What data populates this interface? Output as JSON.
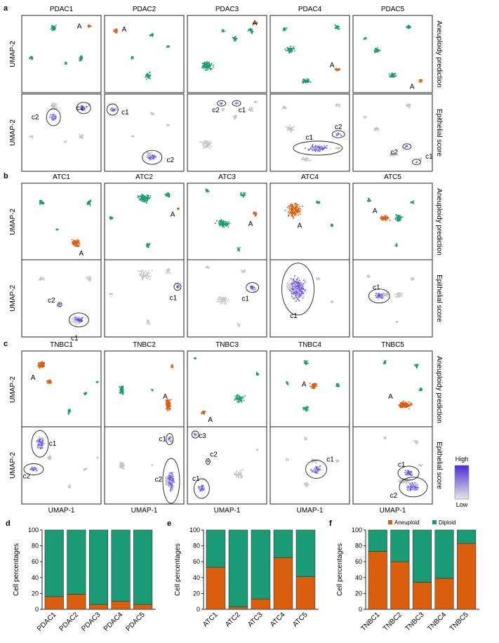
{
  "colors": {
    "aneuploid": "#d95f0e",
    "diploid": "#1a9b75",
    "score_high": "#4b2bd6",
    "score_low": "#c8c8c8",
    "grey_cells": "#c4c4c4"
  },
  "axis_labels": {
    "umap1": "UMAP-1",
    "umap2": "UMAP-2",
    "aneuploidy": "Aneuploidy prediction",
    "epithelial": "Epithelial score"
  },
  "legend": {
    "high": "High",
    "low": "Low",
    "aneuploid": "Aneuploid",
    "diploid": "Diploid"
  },
  "panels": [
    {
      "letter": "a",
      "samples": [
        "PDAC1",
        "PDAC2",
        "PDAC3",
        "PDAC4",
        "PDAC5"
      ],
      "top_labels": [
        "A",
        "A",
        "A",
        "A",
        "A"
      ],
      "bottom_labels": [
        [
          "c2",
          "c1"
        ],
        [
          "c1",
          "c2"
        ],
        [
          "c2",
          "c1"
        ],
        [
          "c1",
          "c2"
        ],
        [
          "c2",
          "c1"
        ]
      ]
    },
    {
      "letter": "b",
      "samples": [
        "ATC1",
        "ATC2",
        "ATC3",
        "ATC4",
        "ATC5"
      ],
      "top_labels": [
        "A",
        "A",
        "A",
        "A",
        "A"
      ],
      "bottom_labels": [
        [
          "c2",
          "c1"
        ],
        [
          "c1"
        ],
        [
          "c1"
        ],
        [
          "c1"
        ],
        [
          "c1"
        ]
      ]
    },
    {
      "letter": "c",
      "samples": [
        "TNBC1",
        "TNBC2",
        "TNBC3",
        "TNBC4",
        "TNBC5"
      ],
      "top_labels": [
        "A",
        "A",
        "A",
        "A",
        "A"
      ],
      "bottom_labels": [
        [
          "c1",
          "c2"
        ],
        [
          "c1",
          "c2"
        ],
        [
          "c3",
          "c2",
          "c1"
        ],
        [
          "c1"
        ],
        [
          "c1",
          "c2"
        ]
      ]
    }
  ],
  "chart_data": [
    {
      "type": "bar",
      "letter": "d",
      "stacked": true,
      "categories": [
        "PDAC1",
        "PDAC2",
        "PDAC3",
        "PDAC4",
        "PDAC5"
      ],
      "series": [
        {
          "name": "Aneuploid",
          "values": [
            16,
            19,
            6,
            10,
            6
          ]
        },
        {
          "name": "Diploid",
          "values": [
            84,
            81,
            94,
            90,
            94
          ]
        }
      ],
      "ylabel": "Cell percentages",
      "ylim": [
        0,
        100
      ],
      "yticks": [
        "0",
        "20",
        "40",
        "60",
        "80",
        "100"
      ]
    },
    {
      "type": "bar",
      "letter": "e",
      "stacked": true,
      "categories": [
        "ATC1",
        "ATC2",
        "ATC3",
        "ATC4",
        "ATC5"
      ],
      "series": [
        {
          "name": "Aneuploid",
          "values": [
            53,
            3,
            13,
            65,
            41
          ]
        },
        {
          "name": "Diploid",
          "values": [
            47,
            97,
            87,
            35,
            59
          ]
        }
      ],
      "ylabel": "Cell percentages",
      "ylim": [
        0,
        100
      ],
      "yticks": [
        "0",
        "20",
        "40",
        "60",
        "80",
        "100"
      ]
    },
    {
      "type": "bar",
      "letter": "f",
      "stacked": true,
      "categories": [
        "TNBC1",
        "TNBC2",
        "TNBC3",
        "TNBC4",
        "TNBC5"
      ],
      "series": [
        {
          "name": "Aneuploid",
          "values": [
            73,
            60,
            34,
            39,
            83
          ]
        },
        {
          "name": "Diploid",
          "values": [
            27,
            40,
            66,
            61,
            17
          ]
        }
      ],
      "ylabel": "Cell percentages",
      "ylim": [
        0,
        100
      ],
      "yticks": [
        "0",
        "20",
        "40",
        "60",
        "80",
        "100"
      ],
      "legend_position": "top"
    }
  ]
}
